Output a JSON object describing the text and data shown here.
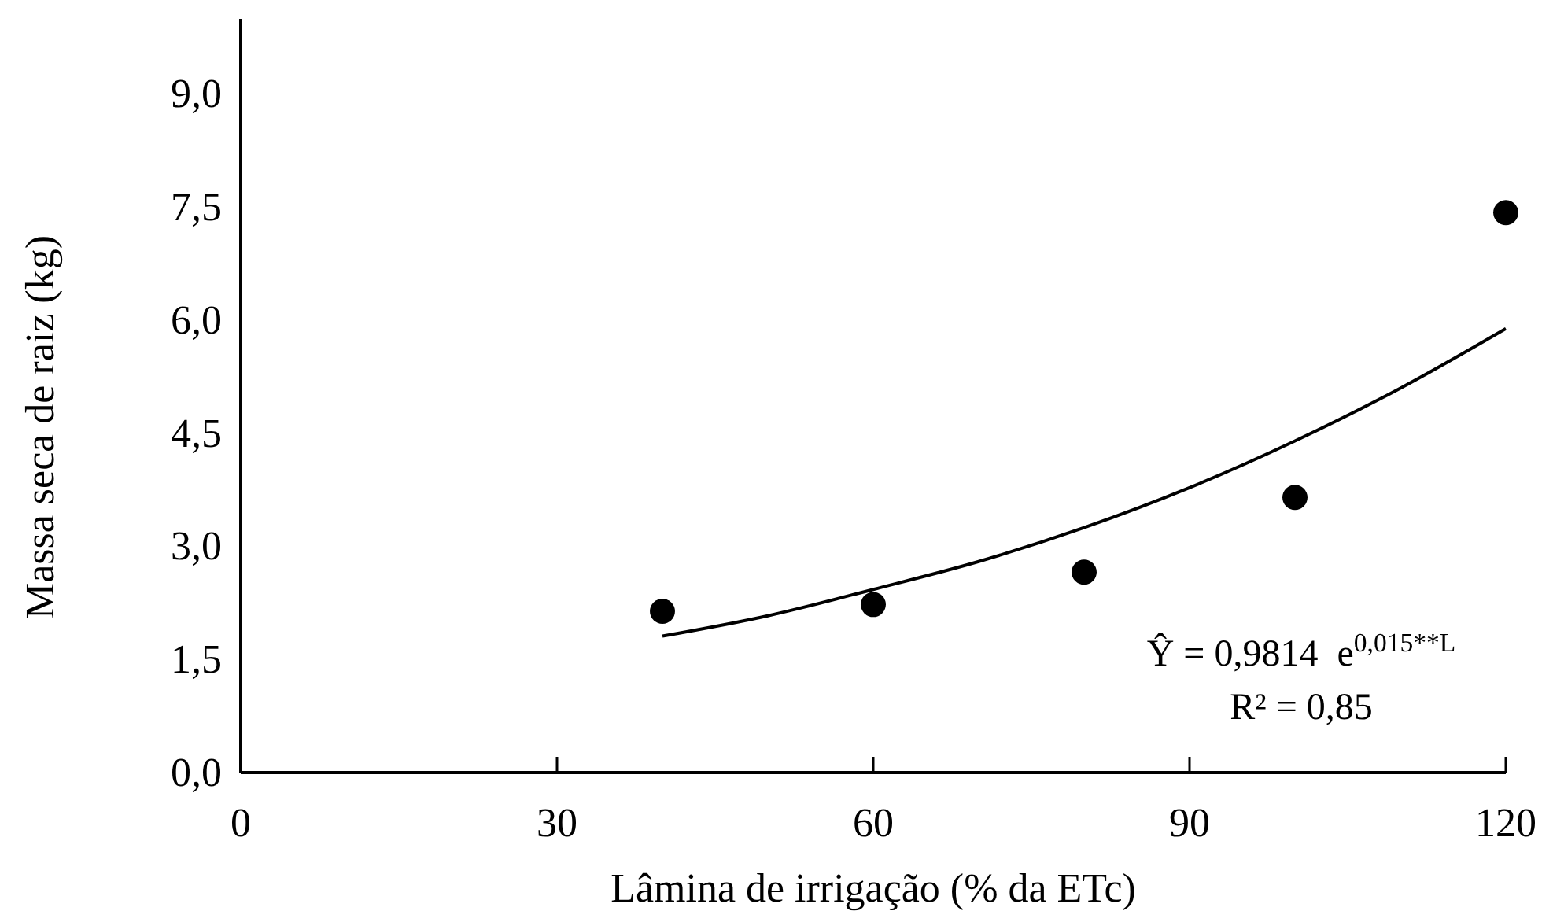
{
  "chart_data": {
    "type": "scatter",
    "xlabel": "Lâmina  de irrigação  (% da ETc)",
    "ylabel": "Massa  seca de raiz (kg)",
    "xlim": [
      0,
      120
    ],
    "xticks": [
      0,
      30,
      60,
      90,
      120
    ],
    "ylim": [
      0,
      10
    ],
    "yticks": [
      {
        "value": 0,
        "label": "0,0"
      },
      {
        "value": 1.5,
        "label": "1,5"
      },
      {
        "value": 3,
        "label": "3,0"
      },
      {
        "value": 4.5,
        "label": "4,5"
      },
      {
        "value": 6,
        "label": "6,0"
      },
      {
        "value": 7.5,
        "label": "7,5"
      },
      {
        "value": 9,
        "label": "9,0"
      }
    ],
    "grid": false,
    "series": [
      {
        "marker": "circle",
        "color": "#000000",
        "x": [
          40,
          60,
          80,
          100,
          120
        ],
        "values": [
          2.14,
          2.23,
          2.66,
          3.65,
          7.43
        ]
      },
      {
        "type": "line",
        "color": "#000000",
        "line_style": "solid",
        "x": [
          40,
          50,
          60,
          70,
          80,
          90,
          100,
          110,
          120
        ],
        "values": [
          1.81,
          2.08,
          2.43,
          2.8,
          3.25,
          3.78,
          4.4,
          5.1,
          5.89
        ]
      }
    ],
    "annotations": [
      "Ŷ = 0,9814  e$^{0,015**L}$",
      "R² = 0,85"
    ]
  }
}
